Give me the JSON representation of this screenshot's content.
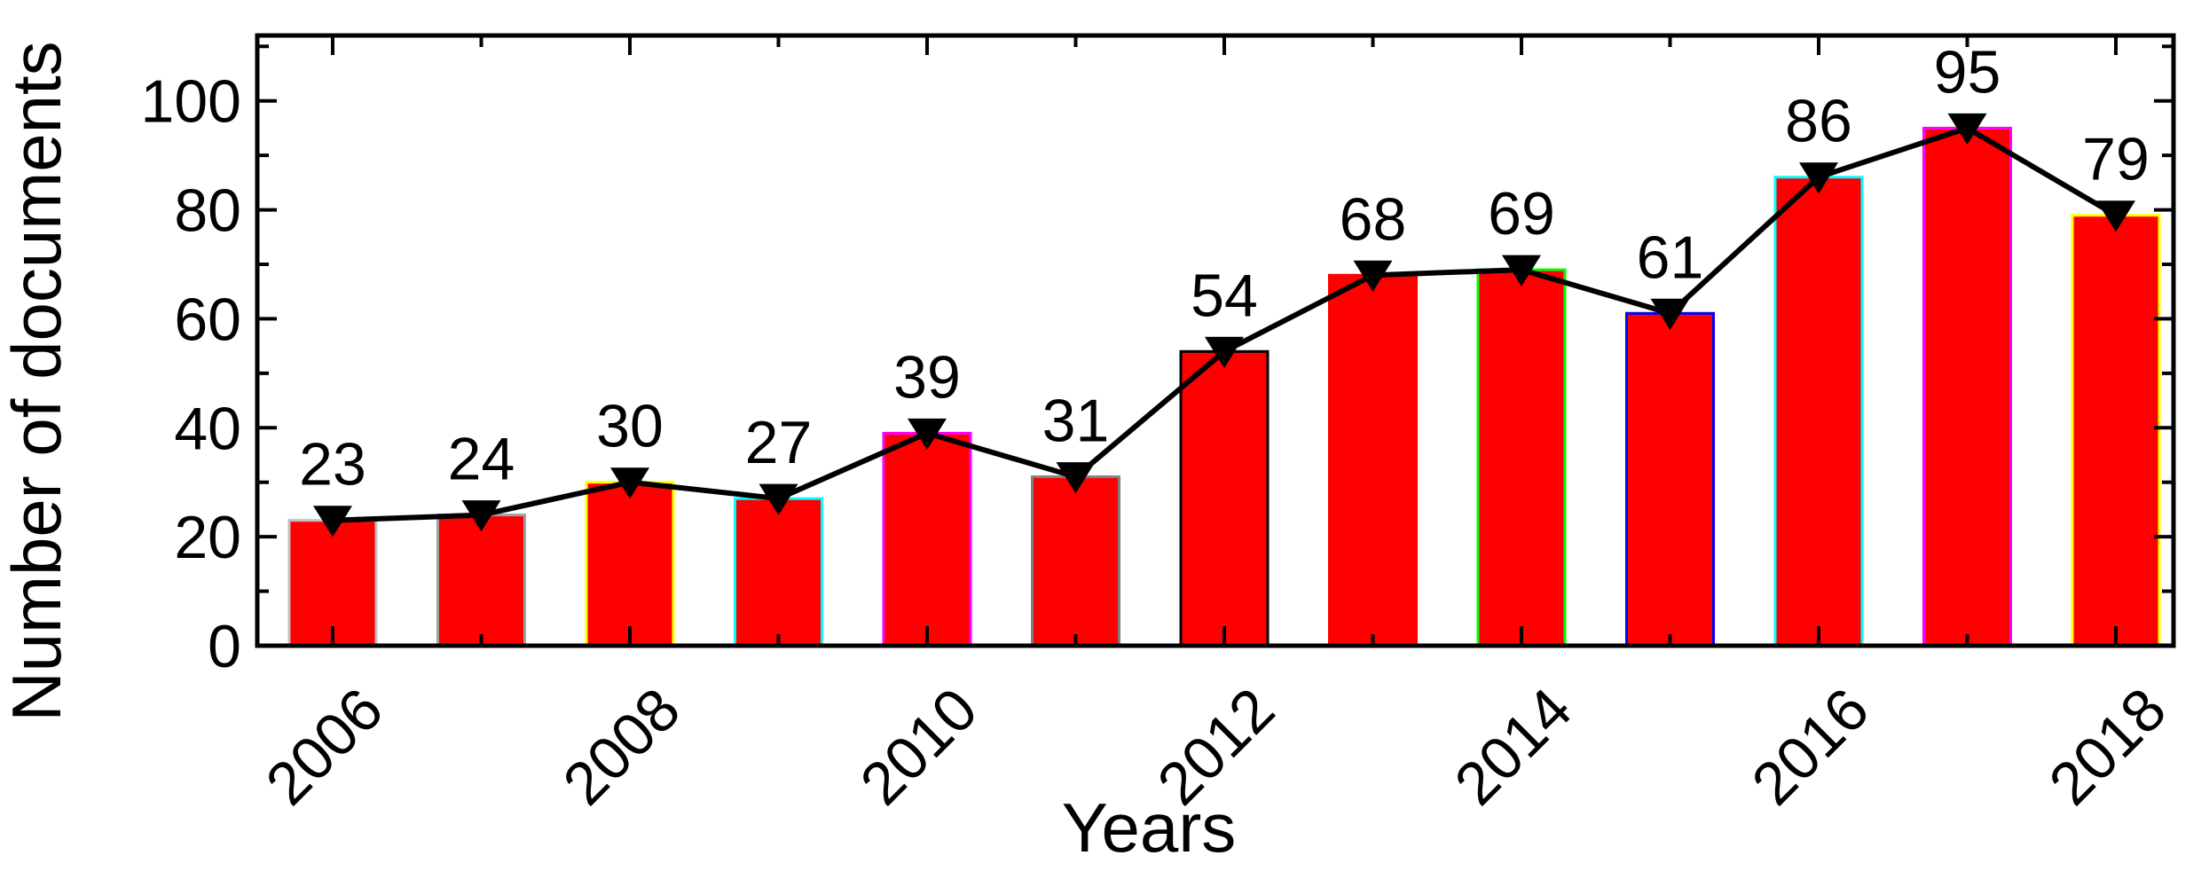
{
  "chart_data": {
    "type": "bar",
    "xlabel": "Years",
    "ylabel": "Number of documents",
    "x": [
      2006,
      2007,
      2008,
      2009,
      2010,
      2011,
      2012,
      2013,
      2014,
      2015,
      2016,
      2017,
      2018
    ],
    "values": [
      23,
      24,
      30,
      27,
      39,
      31,
      54,
      68,
      69,
      61,
      86,
      95,
      79
    ],
    "x_tick_labels": [
      "2006",
      "2008",
      "2010",
      "2012",
      "2014",
      "2016",
      "2018"
    ],
    "y_ticks": [
      0,
      20,
      40,
      60,
      80,
      100
    ],
    "ylim": [
      0,
      112
    ],
    "line_overlay": {
      "marker": "downward-triangle",
      "color": "#000000"
    },
    "bar_fill": "#ff0000",
    "bar_edge_colors": [
      "#c0c0c0",
      "#a0a0a0",
      "#ffff00",
      "#00ffff",
      "#ff00ff",
      "#808080",
      "#000000",
      "#ff0000",
      "#00ff00",
      "#0000ff",
      "#00ffff",
      "#ff00ff",
      "#ffff00"
    ],
    "grid": false
  }
}
